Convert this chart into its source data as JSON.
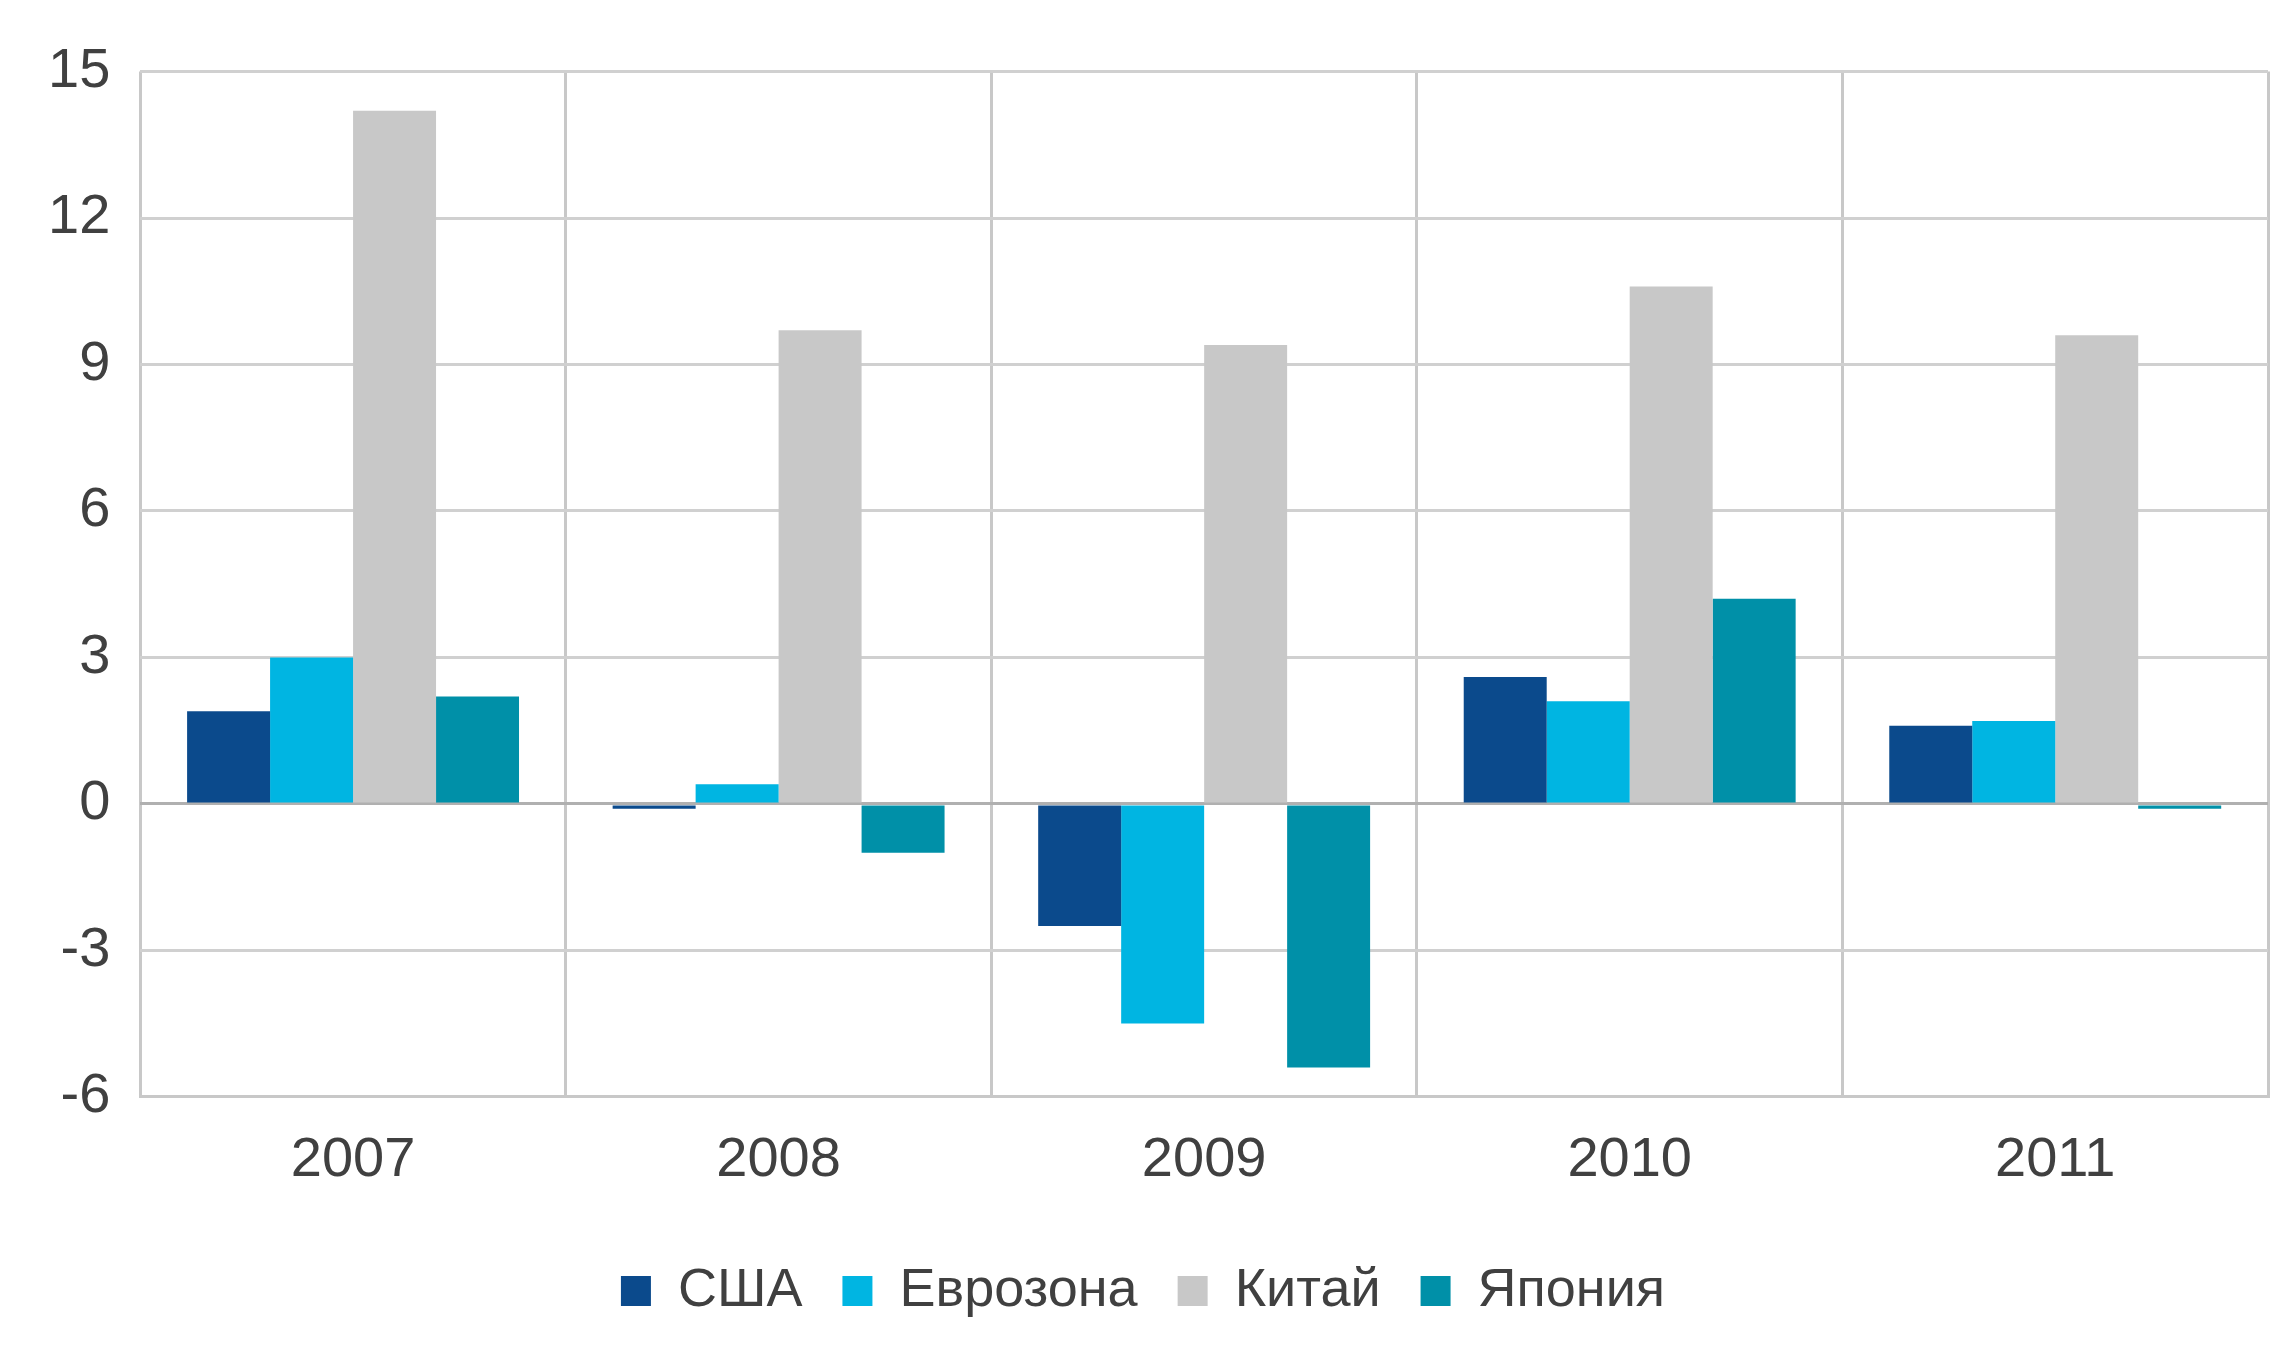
{
  "chart_data": {
    "type": "bar",
    "categories": [
      "2007",
      "2008",
      "2009",
      "2010",
      "2011"
    ],
    "series": [
      {
        "name": "США",
        "color": "#0b4a8c",
        "values": [
          1.9,
          -0.1,
          -2.5,
          2.6,
          1.6
        ]
      },
      {
        "name": "Еврозона",
        "color": "#00b5e2",
        "values": [
          3.0,
          0.4,
          -4.5,
          2.1,
          1.7
        ]
      },
      {
        "name": "Китай",
        "color": "#c8c8c8",
        "values": [
          14.2,
          9.7,
          9.4,
          10.6,
          9.6
        ]
      },
      {
        "name": "Япония",
        "color": "#0090a8",
        "values": [
          2.2,
          -1.0,
          -5.4,
          4.2,
          -0.1
        ]
      }
    ],
    "ylim": [
      -6,
      15
    ],
    "yticks": [
      -6,
      -3,
      0,
      3,
      6,
      9,
      12,
      15
    ],
    "grid": true,
    "legend": "bottom"
  }
}
